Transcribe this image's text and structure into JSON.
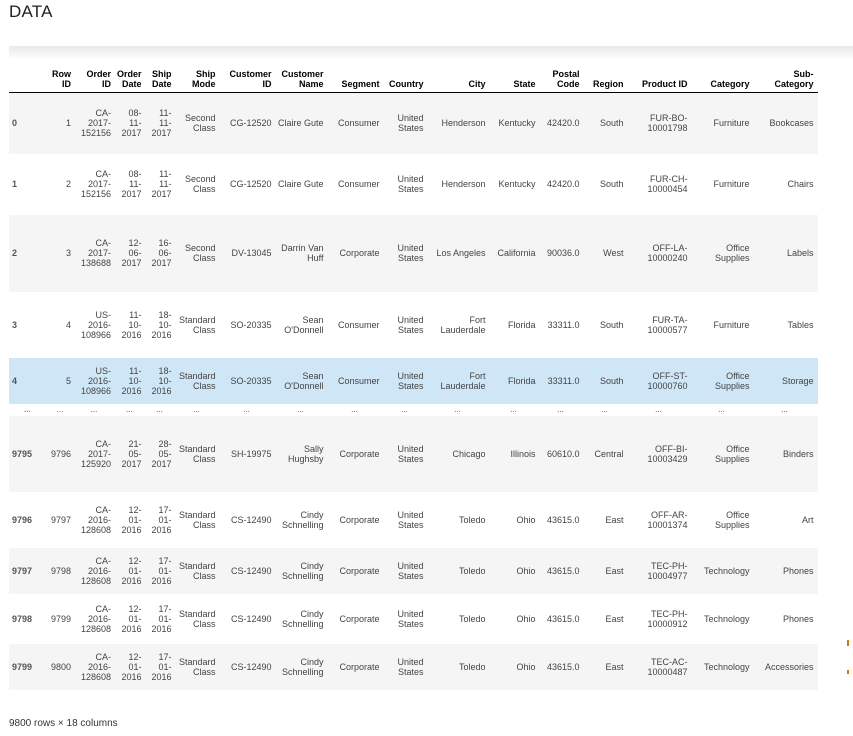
{
  "page": {
    "title": "DATA"
  },
  "table": {
    "headers": [
      {
        "idx": "",
        "row_id": "Row ID",
        "order_id": "Order ID",
        "order_date": "Order Date",
        "ship_date": "Ship Date",
        "ship_mode": "Ship Mode",
        "customer_id": "Customer ID",
        "customer_name": "Customer Name",
        "segment": "Segment",
        "country": "Country",
        "city": "City",
        "state": "State",
        "postal_code": "Postal Code",
        "region": "Region",
        "product_id": "Product ID",
        "category": "Category",
        "sub_category": "Sub-Category"
      }
    ],
    "rows": [
      {
        "idx": "0",
        "row_id": "1",
        "order_id": "CA-2017-152156",
        "order_date": "08-11-2017",
        "ship_date": "11-11-2017",
        "ship_mode": "Second Class",
        "customer_id": "CG-12520",
        "customer_name": "Claire Gute",
        "segment": "Consumer",
        "country": "United States",
        "city": "Henderson",
        "state": "Kentucky",
        "postal_code": "42420.0",
        "region": "South",
        "product_id": "FUR-BO-10001798",
        "category": "Furniture",
        "sub_category": "Bookcases"
      },
      {
        "idx": "1",
        "row_id": "2",
        "order_id": "CA-2017-152156",
        "order_date": "08-11-2017",
        "ship_date": "11-11-2017",
        "ship_mode": "Second Class",
        "customer_id": "CG-12520",
        "customer_name": "Claire Gute",
        "segment": "Consumer",
        "country": "United States",
        "city": "Henderson",
        "state": "Kentucky",
        "postal_code": "42420.0",
        "region": "South",
        "product_id": "FUR-CH-10000454",
        "category": "Furniture",
        "sub_category": "Chairs"
      },
      {
        "idx": "2",
        "row_id": "3",
        "order_id": "CA-2017-138688",
        "order_date": "12-06-2017",
        "ship_date": "16-06-2017",
        "ship_mode": "Second Class",
        "customer_id": "DV-13045",
        "customer_name": "Darrin Van Huff",
        "segment": "Corporate",
        "country": "United States",
        "city": "Los Angeles",
        "state": "California",
        "postal_code": "90036.0",
        "region": "West",
        "product_id": "OFF-LA-10000240",
        "category": "Office Supplies",
        "sub_category": "Labels"
      },
      {
        "idx": "3",
        "row_id": "4",
        "order_id": "US-2016-108966",
        "order_date": "11-10-2016",
        "ship_date": "18-10-2016",
        "ship_mode": "Standard Class",
        "customer_id": "SO-20335",
        "customer_name": "Sean O'Donnell",
        "segment": "Consumer",
        "country": "United States",
        "city": "Fort Lauderdale",
        "state": "Florida",
        "postal_code": "33311.0",
        "region": "South",
        "product_id": "FUR-TA-10000577",
        "category": "Furniture",
        "sub_category": "Tables"
      },
      {
        "idx": "4",
        "row_id": "5",
        "order_id": "US-2016-108966",
        "order_date": "11-10-2016",
        "ship_date": "18-10-2016",
        "ship_mode": "Standard Class",
        "customer_id": "SO-20335",
        "customer_name": "Sean O'Donnell",
        "segment": "Consumer",
        "country": "United States",
        "city": "Fort Lauderdale",
        "state": "Florida",
        "postal_code": "33311.0",
        "region": "South",
        "product_id": "OFF-ST-10000760",
        "category": "Office Supplies",
        "sub_category": "Storage"
      },
      {
        "idx": "...",
        "row_id": "...",
        "order_id": "...",
        "order_date": "...",
        "ship_date": "...",
        "ship_mode": "...",
        "customer_id": "...",
        "customer_name": "...",
        "segment": "...",
        "country": "...",
        "city": "...",
        "state": "...",
        "postal_code": "...",
        "region": "...",
        "product_id": "...",
        "category": "...",
        "sub_category": "..."
      },
      {
        "idx": "9795",
        "row_id": "9796",
        "order_id": "CA-2017-125920",
        "order_date": "21-05-2017",
        "ship_date": "28-05-2017",
        "ship_mode": "Standard Class",
        "customer_id": "SH-19975",
        "customer_name": "Sally Hughsby",
        "segment": "Corporate",
        "country": "United States",
        "city": "Chicago",
        "state": "Illinois",
        "postal_code": "60610.0",
        "region": "Central",
        "product_id": "OFF-BI-10003429",
        "category": "Office Supplies",
        "sub_category": "Binders"
      },
      {
        "idx": "9796",
        "row_id": "9797",
        "order_id": "CA-2016-128608",
        "order_date": "12-01-2016",
        "ship_date": "17-01-2016",
        "ship_mode": "Standard Class",
        "customer_id": "CS-12490",
        "customer_name": "Cindy Schnelling",
        "segment": "Corporate",
        "country": "United States",
        "city": "Toledo",
        "state": "Ohio",
        "postal_code": "43615.0",
        "region": "East",
        "product_id": "OFF-AR-10001374",
        "category": "Office Supplies",
        "sub_category": "Art"
      },
      {
        "idx": "9797",
        "row_id": "9798",
        "order_id": "CA-2016-128608",
        "order_date": "12-01-2016",
        "ship_date": "17-01-2016",
        "ship_mode": "Standard Class",
        "customer_id": "CS-12490",
        "customer_name": "Cindy Schnelling",
        "segment": "Corporate",
        "country": "United States",
        "city": "Toledo",
        "state": "Ohio",
        "postal_code": "43615.0",
        "region": "East",
        "product_id": "TEC-PH-10004977",
        "category": "Technology",
        "sub_category": "Phones"
      },
      {
        "idx": "9798",
        "row_id": "9799",
        "order_id": "CA-2016-128608",
        "order_date": "12-01-2016",
        "ship_date": "17-01-2016",
        "ship_mode": "Standard Class",
        "customer_id": "CS-12490",
        "customer_name": "Cindy Schnelling",
        "segment": "Corporate",
        "country": "United States",
        "city": "Toledo",
        "state": "Ohio",
        "postal_code": "43615.0",
        "region": "East",
        "product_id": "TEC-PH-10000912",
        "category": "Technology",
        "sub_category": "Phones"
      },
      {
        "idx": "9799",
        "row_id": "9800",
        "order_id": "CA-2016-128608",
        "order_date": "12-01-2016",
        "ship_date": "17-01-2016",
        "ship_mode": "Standard Class",
        "customer_id": "CS-12490",
        "customer_name": "Cindy Schnelling",
        "segment": "Corporate",
        "country": "United States",
        "city": "Toledo",
        "state": "Ohio",
        "postal_code": "43615.0",
        "region": "East",
        "product_id": "TEC-AC-10000487",
        "category": "Technology",
        "sub_category": "Accessories"
      }
    ]
  },
  "footer": {
    "summary": "9800 rows × 18 columns"
  },
  "colors": {
    "highlight_row": "#cfe6f7",
    "striped_row": "#f5f5f5",
    "scroll_marker": "#c8761c"
  }
}
